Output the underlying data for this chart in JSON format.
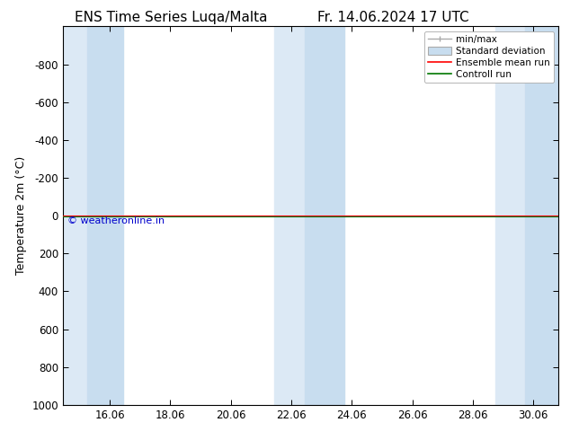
{
  "title_left": "ENS Time Series Luqa/Malta",
  "title_right": "Fr. 14.06.2024 17 UTC",
  "ylabel": "Temperature 2m (°C)",
  "watermark": "© weatheronline.in",
  "ylim_bottom": 1000,
  "ylim_top": -1000,
  "yticks": [
    -800,
    -600,
    -400,
    -200,
    0,
    200,
    400,
    600,
    800,
    1000
  ],
  "xtick_labels": [
    "16.06",
    "18.06",
    "20.06",
    "22.06",
    "24.06",
    "26.06",
    "28.06",
    "30.06"
  ],
  "xtick_positions": [
    16.06,
    18.06,
    20.06,
    22.06,
    24.06,
    26.06,
    28.06,
    30.06
  ],
  "x_min": 14.5,
  "x_max": 30.9,
  "shaded_regions": [
    [
      14.5,
      15.3
    ],
    [
      15.3,
      16.5
    ],
    [
      21.5,
      22.5
    ],
    [
      22.5,
      23.8
    ],
    [
      28.8,
      29.8
    ],
    [
      29.8,
      30.9
    ]
  ],
  "shaded_color_light": "#dce9f5",
  "shaded_color_dark": "#c8ddef",
  "ensemble_mean_color": "#ff0000",
  "control_run_color": "#007700",
  "line_y": 0,
  "background_color": "#ffffff",
  "title_fontsize": 11,
  "axis_label_fontsize": 9,
  "tick_fontsize": 8.5,
  "legend_fontsize": 7.5
}
